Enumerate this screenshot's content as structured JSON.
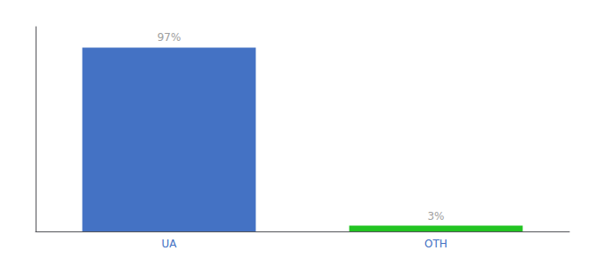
{
  "chart_data": {
    "type": "bar",
    "categories": [
      "UA",
      "OTH"
    ],
    "values": [
      97,
      3
    ],
    "value_labels": [
      "97%",
      "3%"
    ],
    "data_labels": true,
    "colors": [
      "#4472c4",
      "#22c422"
    ],
    "ylim": [
      0,
      108
    ],
    "grid": false,
    "tick_labels": "x"
  }
}
